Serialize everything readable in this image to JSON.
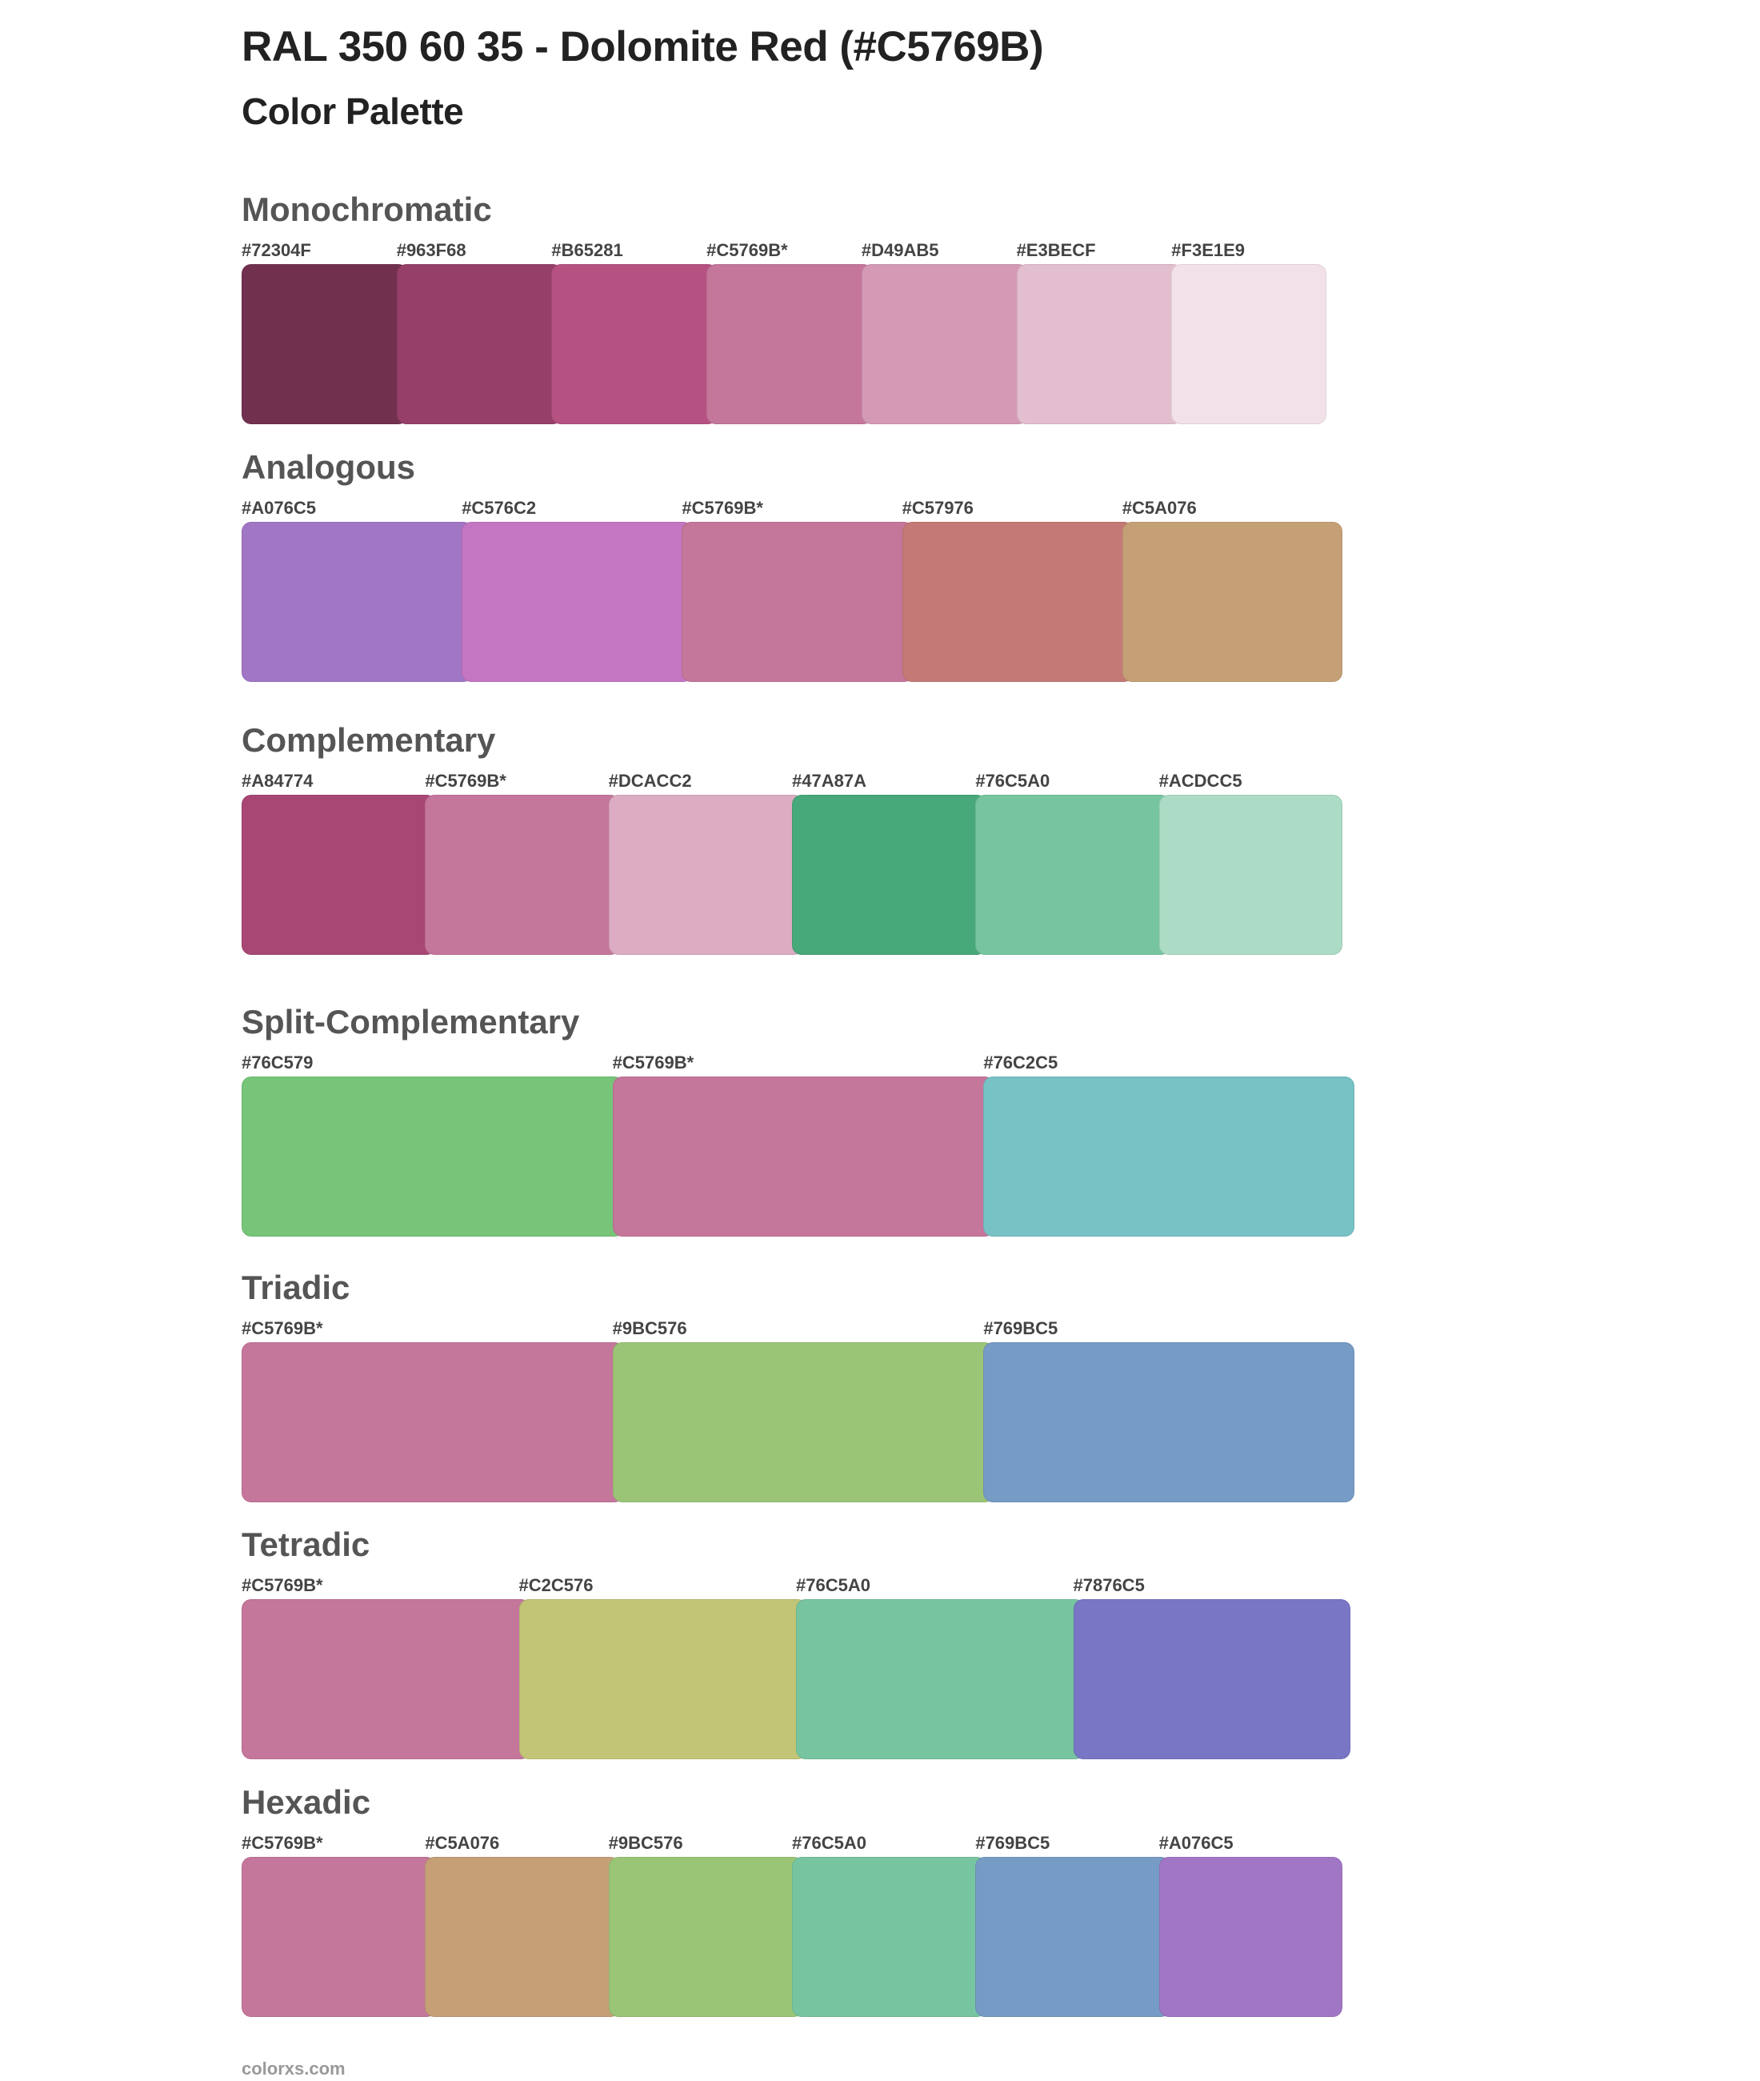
{
  "title": "RAL 350 60 35 - Dolomite Red (#C5769B)",
  "subtitle": "Color Palette",
  "palettes": [
    {
      "name": "Monochromatic",
      "colors": [
        {
          "label": "#72304F",
          "hex": "#72304F"
        },
        {
          "label": "#963F68",
          "hex": "#963F68"
        },
        {
          "label": "#B65281",
          "hex": "#B65281"
        },
        {
          "label": "#C5769B*",
          "hex": "#C5769B"
        },
        {
          "label": "#D49AB5",
          "hex": "#D49AB5"
        },
        {
          "label": "#E3BECF",
          "hex": "#E3BECF"
        },
        {
          "label": "#F3E1E9",
          "hex": "#F3E1E9"
        }
      ]
    },
    {
      "name": "Analogous",
      "colors": [
        {
          "label": "#A076C5",
          "hex": "#A076C5"
        },
        {
          "label": "#C576C2",
          "hex": "#C576C2"
        },
        {
          "label": "#C5769B*",
          "hex": "#C5769B"
        },
        {
          "label": "#C57976",
          "hex": "#C57976"
        },
        {
          "label": "#C5A076",
          "hex": "#C5A076"
        }
      ]
    },
    {
      "name": "Complementary",
      "colors": [
        {
          "label": "#A84774",
          "hex": "#A84774"
        },
        {
          "label": "#C5769B*",
          "hex": "#C5769B"
        },
        {
          "label": "#DCACC2",
          "hex": "#DCACC2"
        },
        {
          "label": "#47A87A",
          "hex": "#47A87A"
        },
        {
          "label": "#76C5A0",
          "hex": "#76C5A0"
        },
        {
          "label": "#ACDCC5",
          "hex": "#ACDCC5"
        }
      ]
    },
    {
      "name": "Split-Complementary",
      "colors": [
        {
          "label": "#76C579",
          "hex": "#76C579"
        },
        {
          "label": "#C5769B*",
          "hex": "#C5769B"
        },
        {
          "label": "#76C2C5",
          "hex": "#76C2C5"
        }
      ]
    },
    {
      "name": "Triadic",
      "colors": [
        {
          "label": "#C5769B*",
          "hex": "#C5769B"
        },
        {
          "label": "#9BC576",
          "hex": "#9BC576"
        },
        {
          "label": "#769BC5",
          "hex": "#769BC5"
        }
      ]
    },
    {
      "name": "Tetradic",
      "colors": [
        {
          "label": "#C5769B*",
          "hex": "#C5769B"
        },
        {
          "label": "#C2C576",
          "hex": "#C2C576"
        },
        {
          "label": "#76C5A0",
          "hex": "#76C5A0"
        },
        {
          "label": "#7876C5",
          "hex": "#7876C5"
        }
      ]
    },
    {
      "name": "Hexadic",
      "colors": [
        {
          "label": "#C5769B*",
          "hex": "#C5769B"
        },
        {
          "label": "#C5A076",
          "hex": "#C5A076"
        },
        {
          "label": "#9BC576",
          "hex": "#9BC576"
        },
        {
          "label": "#76C5A0",
          "hex": "#76C5A0"
        },
        {
          "label": "#769BC5",
          "hex": "#769BC5"
        },
        {
          "label": "#A076C5",
          "hex": "#A076C5"
        }
      ]
    }
  ],
  "footer": "colorxs.com"
}
